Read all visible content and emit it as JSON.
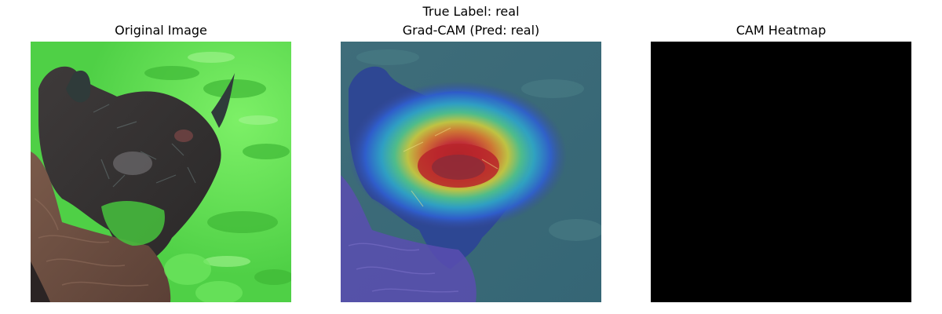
{
  "figure": {
    "suptitle": "True Label: real"
  },
  "panels": [
    {
      "title": "Original Image"
    },
    {
      "title": "Grad-CAM (Pred: real)"
    },
    {
      "title": "CAM Heatmap"
    }
  ]
}
